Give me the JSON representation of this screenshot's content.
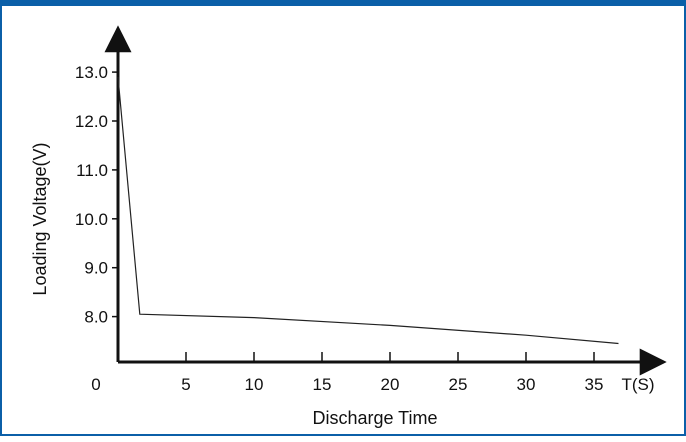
{
  "colors": {
    "frame": "#0b5fa8",
    "axis": "#111111",
    "line": "#222222"
  },
  "chart_data": {
    "type": "line",
    "title": "",
    "xlabel": "Discharge Time",
    "ylabel": "Loading Voltage(V)",
    "x_unit_label": "T(S)",
    "x_ticks": [
      5,
      10,
      15,
      20,
      25,
      30,
      35
    ],
    "x_origin_label": "0",
    "y_ticks": [
      "8.0",
      "9.0",
      "10.0",
      "11.0",
      "12.0",
      "13.0"
    ],
    "xlim": [
      0,
      40
    ],
    "ylim": [
      7,
      14
    ],
    "grid": false,
    "series": [
      {
        "x": [
          0,
          1.6,
          10,
          20,
          30,
          36.8
        ],
        "y": [
          12.9,
          8.05,
          7.98,
          7.82,
          7.62,
          7.45
        ]
      }
    ]
  }
}
